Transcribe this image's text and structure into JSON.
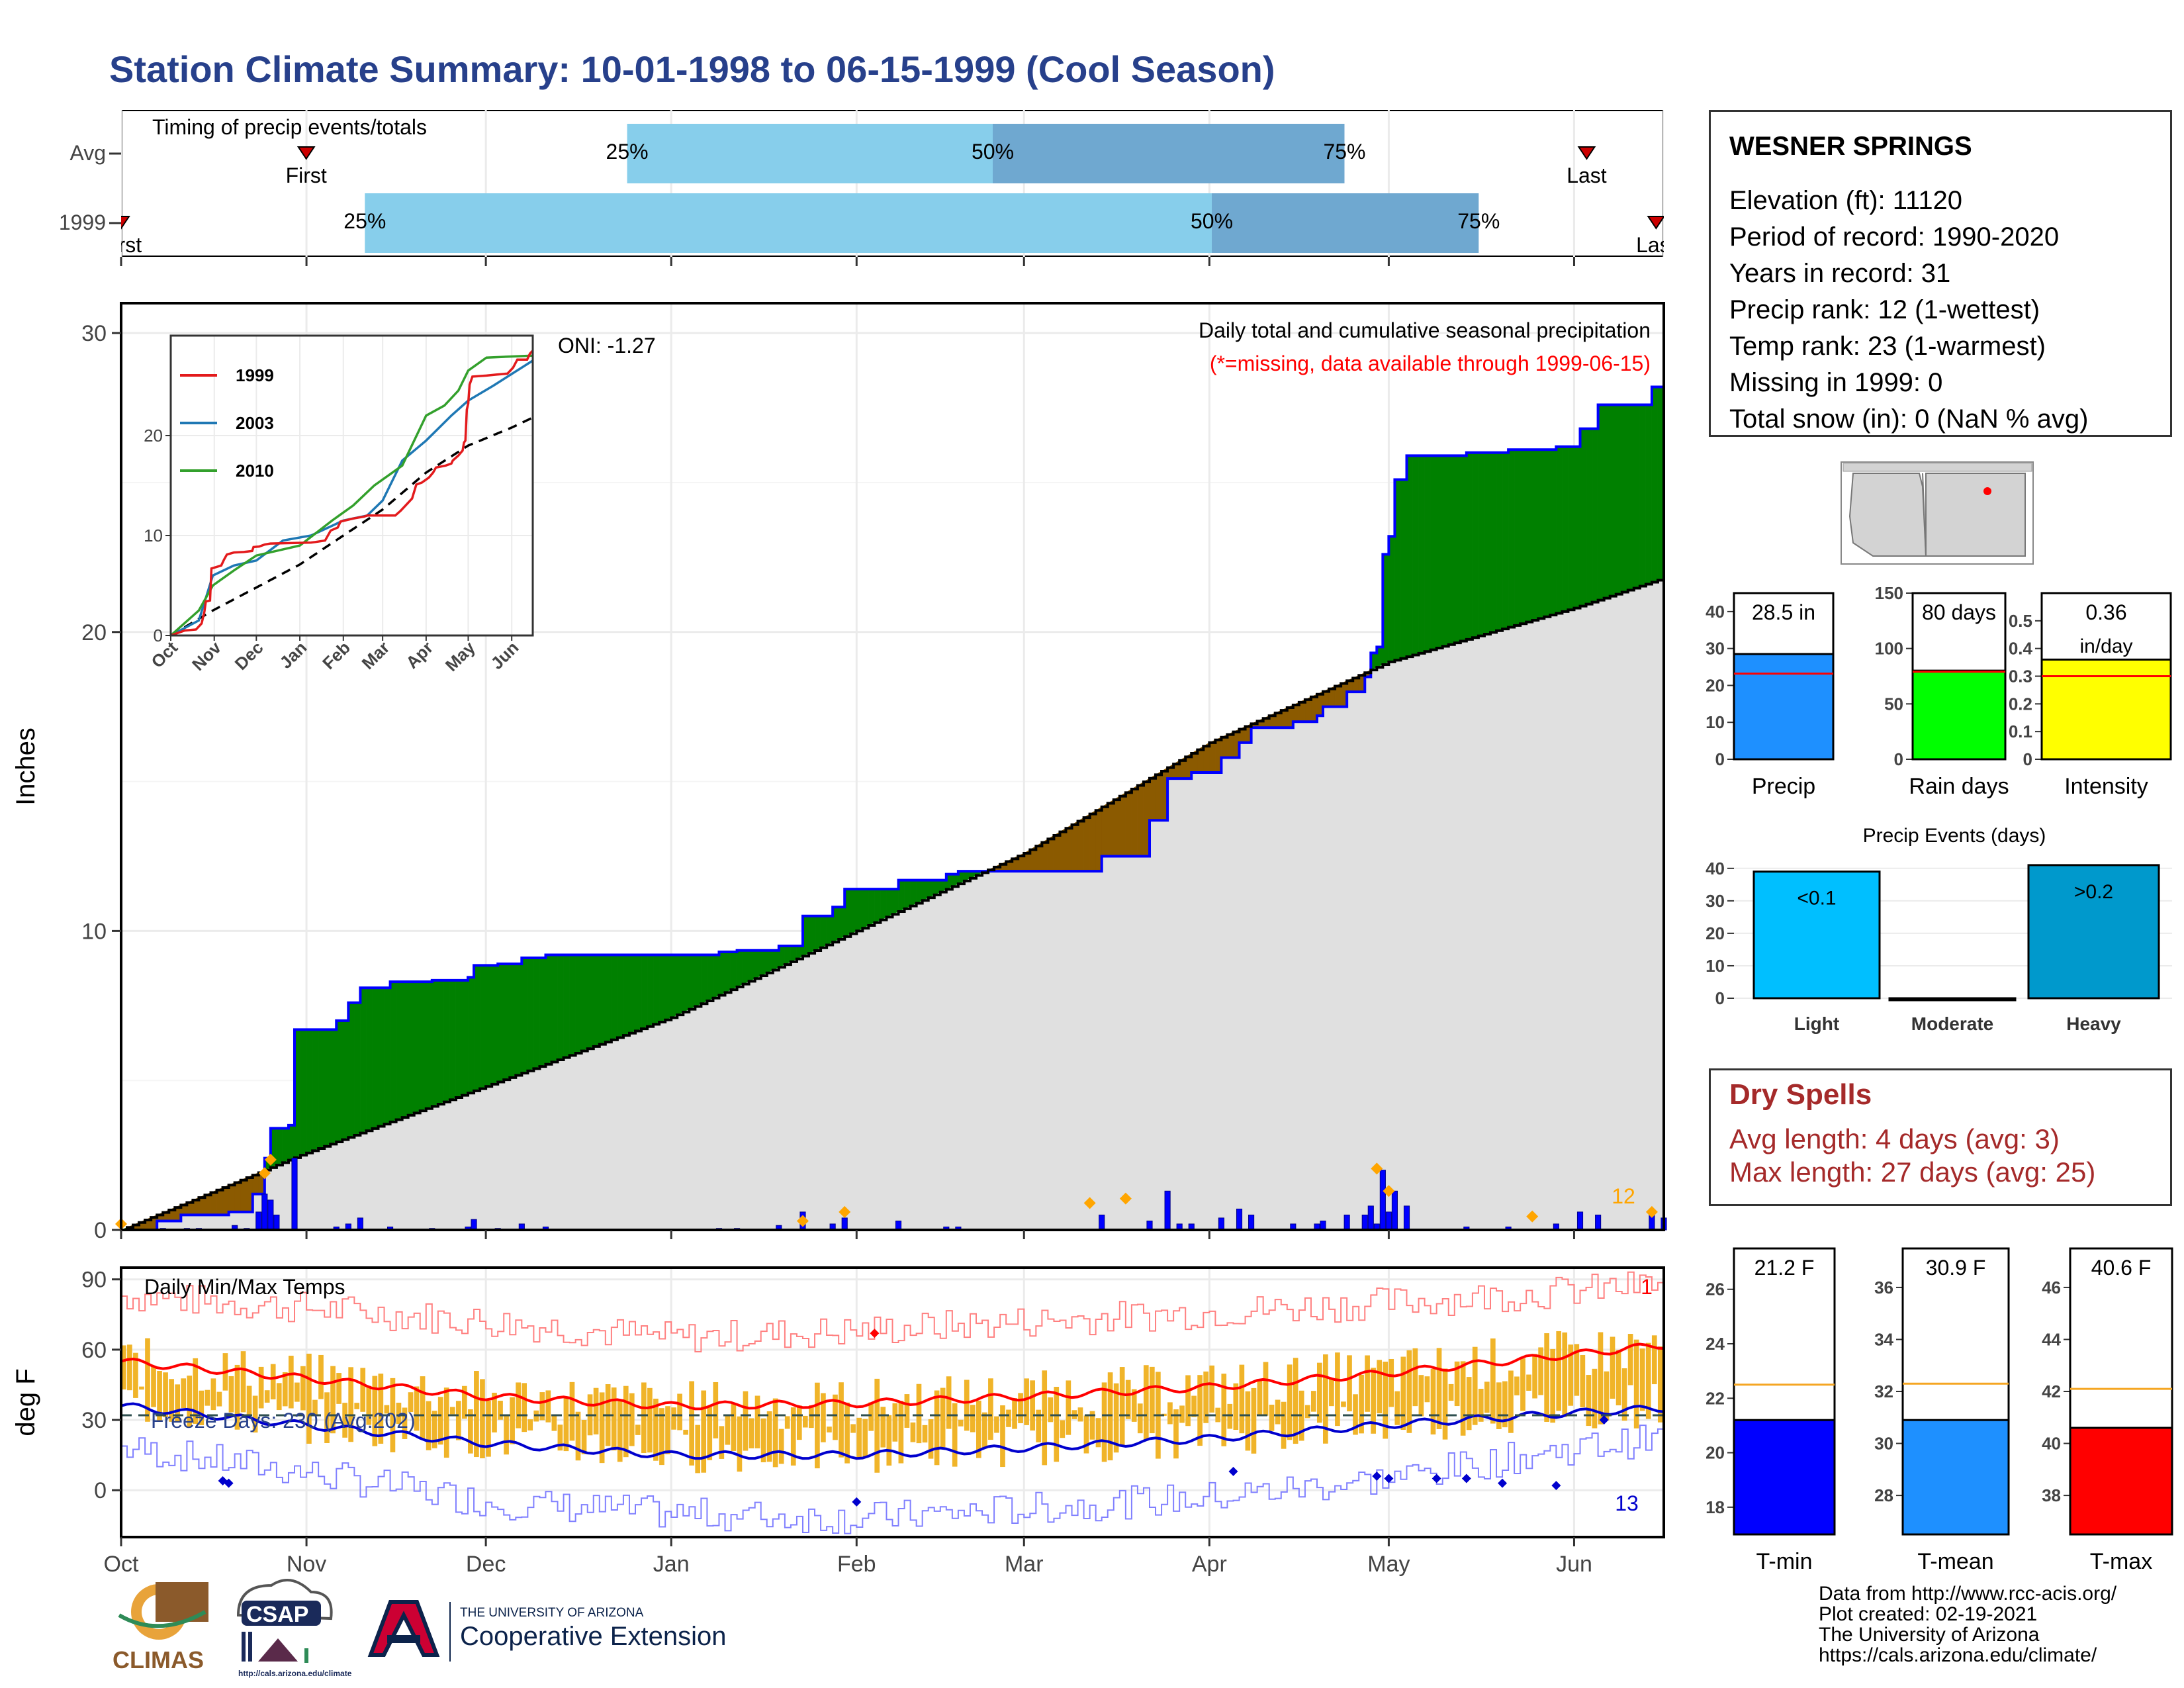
{
  "page_title": "Station Climate Summary: 10-01-1998 to 06-15-1999 (Cool Season)",
  "colors": {
    "title": "#27408b",
    "green": "#008000",
    "brown": "#8b5a00",
    "grey": "#e0e0e0",
    "blue": "#0000ff",
    "orange": "#f5a623",
    "red": "#ff0000",
    "lightblue": "#87ceeb",
    "midblue": "#6fa8d0"
  },
  "timing": {
    "title": "Timing of precip events/totals",
    "rows": [
      {
        "label": "Avg",
        "first_label": "First",
        "last_label": "Last",
        "first_x": 0.12,
        "last_x": 0.95,
        "p25_x": 0.328,
        "p50_x": 0.565,
        "p75_x": 0.793,
        "p25": "25%",
        "p50": "50%",
        "p75": "75%"
      },
      {
        "label": "1999",
        "first_label": "First",
        "last_label": "Last",
        "first_x": 0.0,
        "last_x": 0.995,
        "p25_x": 0.158,
        "p50_x": 0.707,
        "p75_x": 0.88,
        "p25": "25%",
        "p50": "50%",
        "p75": "75%"
      }
    ]
  },
  "chart_data": [
    {
      "type": "area",
      "id": "cumulative-precip",
      "title": "Daily total and cumulative seasonal precipitation",
      "subtitle": "(*=missing, data available through 1999-06-15)",
      "ylabel": "Inches",
      "ylim": [
        0,
        31
      ],
      "yticks": [
        0,
        10,
        20,
        30
      ],
      "oni": "ONI: -1.27",
      "extreme_count": "12",
      "x_months": [
        "Oct",
        "Nov",
        "Dec",
        "Jan",
        "Feb",
        "Mar",
        "Apr",
        "May",
        "Jun"
      ],
      "month_starts": [
        0,
        31,
        61,
        92,
        123,
        151,
        182,
        212,
        243
      ],
      "days": 258,
      "cum_1999": [
        [
          0,
          0
        ],
        [
          6,
          0.3
        ],
        [
          10,
          0.5
        ],
        [
          18,
          0.6
        ],
        [
          22,
          1.2
        ],
        [
          24,
          2.4
        ],
        [
          25,
          3.4
        ],
        [
          28,
          3.5
        ],
        [
          29,
          6.7
        ],
        [
          36,
          7.0
        ],
        [
          38,
          7.6
        ],
        [
          40,
          8.1
        ],
        [
          45,
          8.3
        ],
        [
          52,
          8.35
        ],
        [
          58,
          8.45
        ],
        [
          59,
          8.85
        ],
        [
          63,
          8.9
        ],
        [
          67,
          9.1
        ],
        [
          71,
          9.2
        ],
        [
          100,
          9.3
        ],
        [
          103,
          9.35
        ],
        [
          110,
          9.5
        ],
        [
          114,
          10.5
        ],
        [
          119,
          10.8
        ],
        [
          121,
          11.4
        ],
        [
          130,
          11.7
        ],
        [
          138,
          11.9
        ],
        [
          140,
          12.0
        ],
        [
          156,
          12.0
        ],
        [
          160,
          12.0
        ],
        [
          164,
          12.5
        ],
        [
          172,
          13.7
        ],
        [
          175,
          15.1
        ],
        [
          179,
          15.3
        ],
        [
          184,
          15.8
        ],
        [
          187,
          16.3
        ],
        [
          189,
          16.8
        ],
        [
          196,
          17.0
        ],
        [
          200,
          17.2
        ],
        [
          201,
          17.5
        ],
        [
          205,
          18.0
        ],
        [
          208,
          18.5
        ],
        [
          209,
          19.3
        ],
        [
          210,
          19.5
        ],
        [
          211,
          22.6
        ],
        [
          212,
          23.2
        ],
        [
          213,
          25.1
        ],
        [
          215,
          25.9
        ],
        [
          225,
          26.0
        ],
        [
          232,
          26.1
        ],
        [
          240,
          26.2
        ],
        [
          244,
          26.8
        ],
        [
          247,
          27.6
        ],
        [
          254,
          27.6
        ],
        [
          256,
          28.2
        ],
        [
          258,
          28.5
        ]
      ],
      "cum_avg": [
        [
          0,
          0
        ],
        [
          30,
          2.5
        ],
        [
          61,
          4.8
        ],
        [
          92,
          7.1
        ],
        [
          123,
          10.0
        ],
        [
          151,
          12.6
        ],
        [
          182,
          16.3
        ],
        [
          212,
          19.0
        ],
        [
          243,
          20.8
        ],
        [
          258,
          21.8
        ]
      ],
      "daily_bars": [
        [
          7,
          0.05
        ],
        [
          11,
          0.05
        ],
        [
          13,
          0.05
        ],
        [
          19,
          0.15
        ],
        [
          21,
          0.05
        ],
        [
          23,
          0.6
        ],
        [
          24,
          1.2
        ],
        [
          25,
          1.0
        ],
        [
          26,
          0.5
        ],
        [
          29,
          2.4
        ],
        [
          36,
          0.1
        ],
        [
          38,
          0.2
        ],
        [
          40,
          0.4
        ],
        [
          45,
          0.1
        ],
        [
          52,
          0.05
        ],
        [
          58,
          0.1
        ],
        [
          59,
          0.35
        ],
        [
          63,
          0.05
        ],
        [
          67,
          0.2
        ],
        [
          71,
          0.1
        ],
        [
          100,
          0.05
        ],
        [
          103,
          0.05
        ],
        [
          110,
          0.15
        ],
        [
          114,
          0.6
        ],
        [
          119,
          0.2
        ],
        [
          121,
          0.4
        ],
        [
          130,
          0.3
        ],
        [
          138,
          0.1
        ],
        [
          140,
          0.1
        ],
        [
          164,
          0.5
        ],
        [
          172,
          0.3
        ],
        [
          175,
          1.3
        ],
        [
          177,
          0.2
        ],
        [
          179,
          0.2
        ],
        [
          184,
          0.4
        ],
        [
          187,
          0.7
        ],
        [
          189,
          0.5
        ],
        [
          196,
          0.2
        ],
        [
          200,
          0.2
        ],
        [
          201,
          0.3
        ],
        [
          205,
          0.5
        ],
        [
          208,
          0.5
        ],
        [
          209,
          0.8
        ],
        [
          210,
          0.2
        ],
        [
          211,
          2.0
        ],
        [
          212,
          0.6
        ],
        [
          213,
          1.3
        ],
        [
          215,
          0.8
        ],
        [
          225,
          0.1
        ],
        [
          232,
          0.1
        ],
        [
          240,
          0.2
        ],
        [
          244,
          0.6
        ],
        [
          247,
          0.5
        ],
        [
          256,
          0.6
        ],
        [
          258,
          0.4
        ]
      ],
      "marked_days": [
        [
          0,
          0.2
        ],
        [
          24,
          1.9
        ],
        [
          25,
          2.35
        ],
        [
          114,
          0.3
        ],
        [
          121,
          0.6
        ],
        [
          162,
          0.9
        ],
        [
          168,
          1.05
        ],
        [
          210,
          2.05
        ],
        [
          212,
          1.3
        ],
        [
          236,
          0.45
        ],
        [
          256,
          0.6
        ]
      ]
    },
    {
      "type": "line",
      "id": "inset-cumulative",
      "series": [
        {
          "name": "1999",
          "color": "#e31a1c"
        },
        {
          "name": "2003",
          "color": "#1f78b4"
        },
        {
          "name": "2010",
          "color": "#33a02c"
        }
      ],
      "x_months": [
        "Oct",
        "Nov",
        "Dec",
        "Jan",
        "Feb",
        "Mar",
        "Apr",
        "May",
        "Jun"
      ],
      "ylim": [
        0,
        30
      ],
      "yticks": [
        0,
        10,
        20
      ],
      "s2003": [
        [
          0,
          0
        ],
        [
          20,
          1.5
        ],
        [
          30,
          6.0
        ],
        [
          45,
          7.0
        ],
        [
          61,
          7.5
        ],
        [
          80,
          9.5
        ],
        [
          100,
          10.0
        ],
        [
          123,
          11.5
        ],
        [
          140,
          12.0
        ],
        [
          151,
          13.5
        ],
        [
          165,
          17.5
        ],
        [
          182,
          19.5
        ],
        [
          200,
          22.0
        ],
        [
          212,
          23.5
        ],
        [
          230,
          25.0
        ],
        [
          258,
          27.5
        ]
      ],
      "s2010": [
        [
          0,
          0
        ],
        [
          20,
          2.5
        ],
        [
          30,
          5.0
        ],
        [
          45,
          6.5
        ],
        [
          61,
          8.0
        ],
        [
          92,
          9.0
        ],
        [
          115,
          11.5
        ],
        [
          130,
          13.0
        ],
        [
          145,
          15.0
        ],
        [
          165,
          17.0
        ],
        [
          182,
          22.0
        ],
        [
          195,
          23.0
        ],
        [
          205,
          24.5
        ],
        [
          212,
          26.5
        ],
        [
          225,
          27.8
        ],
        [
          258,
          28.0
        ]
      ]
    },
    {
      "type": "line",
      "id": "temps",
      "title": "Daily Min/Max Temps",
      "ylabel": "deg F",
      "ylim": [
        -20,
        95
      ],
      "yticks": [
        0,
        30,
        60,
        90
      ],
      "freeze_label": "Freeze Days: 230 (Avg:202)",
      "max_count": "1",
      "min_count": "13",
      "freeze_line": 32,
      "x_months": [
        "Oct",
        "Nov",
        "Dec",
        "Jan",
        "Feb",
        "Mar",
        "Apr",
        "May",
        "Jun"
      ],
      "avg_max": [
        [
          0,
          55
        ],
        [
          30,
          48
        ],
        [
          61,
          40
        ],
        [
          92,
          36
        ],
        [
          123,
          37
        ],
        [
          151,
          40
        ],
        [
          182,
          44
        ],
        [
          212,
          50
        ],
        [
          243,
          58
        ],
        [
          258,
          62
        ]
      ],
      "avg_min": [
        [
          0,
          36
        ],
        [
          30,
          28
        ],
        [
          61,
          20
        ],
        [
          92,
          15
        ],
        [
          123,
          15
        ],
        [
          151,
          18
        ],
        [
          182,
          22
        ],
        [
          212,
          28
        ],
        [
          243,
          33
        ],
        [
          258,
          35
        ]
      ],
      "rec_max": [
        [
          0,
          83
        ],
        [
          30,
          78
        ],
        [
          61,
          72
        ],
        [
          92,
          65
        ],
        [
          123,
          68
        ],
        [
          151,
          72
        ],
        [
          182,
          76
        ],
        [
          212,
          80
        ],
        [
          243,
          85
        ],
        [
          258,
          88
        ]
      ],
      "rec_min": [
        [
          0,
          18
        ],
        [
          30,
          8
        ],
        [
          61,
          -5
        ],
        [
          92,
          -10
        ],
        [
          123,
          -12
        ],
        [
          151,
          -8
        ],
        [
          182,
          -3
        ],
        [
          212,
          5
        ],
        [
          243,
          18
        ],
        [
          258,
          22
        ]
      ]
    },
    {
      "type": "bar",
      "id": "precip-total",
      "categories": [
        "Precip"
      ],
      "values": [
        28.5
      ],
      "avg": 23.2,
      "ylim": [
        0,
        45
      ],
      "yticks": [
        0,
        10,
        20,
        30,
        40
      ],
      "label": "28.5 in",
      "color": "#1e90ff"
    },
    {
      "type": "bar",
      "id": "rain-days",
      "categories": [
        "Rain days"
      ],
      "values": [
        80
      ],
      "avg": 79,
      "ylim": [
        0,
        150
      ],
      "yticks": [
        0,
        50,
        100,
        150
      ],
      "label": "80 days",
      "color": "#00ff00"
    },
    {
      "type": "bar",
      "id": "intensity",
      "categories": [
        "Intensity"
      ],
      "values": [
        0.36
      ],
      "avg": 0.3,
      "ylim": [
        0,
        0.6
      ],
      "yticks": [
        0.0,
        0.1,
        0.2,
        0.3,
        0.4,
        0.5
      ],
      "label": "0.36",
      "label2": "in/day",
      "color": "#ffff00"
    },
    {
      "type": "bar",
      "id": "precip-events",
      "title": "Precip Events (days)",
      "categories": [
        "Light",
        "Moderate",
        "Heavy"
      ],
      "values": [
        39,
        0,
        41
      ],
      "bar_labels": [
        "<0.1",
        "",
        ">0.2"
      ],
      "colors": [
        "#00bfff",
        "#000000",
        "#0099cc"
      ],
      "ylim": [
        0,
        42
      ],
      "yticks": [
        0,
        10,
        20,
        30,
        40
      ]
    },
    {
      "type": "bar",
      "id": "t-min",
      "categories": [
        "T-min"
      ],
      "values": [
        21.2
      ],
      "avg": 22.5,
      "ylim": [
        17,
        27.5
      ],
      "yticks": [
        18,
        20,
        22,
        24,
        26
      ],
      "label": "21.2 F",
      "color": "#0000ff"
    },
    {
      "type": "bar",
      "id": "t-mean",
      "categories": [
        "T-mean"
      ],
      "values": [
        30.9
      ],
      "avg": 32.3,
      "ylim": [
        26.5,
        37.5
      ],
      "yticks": [
        28,
        30,
        32,
        34,
        36
      ],
      "label": "30.9 F",
      "color": "#1e90ff"
    },
    {
      "type": "bar",
      "id": "t-max",
      "categories": [
        "T-max"
      ],
      "values": [
        40.6
      ],
      "avg": 42.1,
      "ylim": [
        36.5,
        47.5
      ],
      "yticks": [
        38,
        40,
        42,
        44,
        46
      ],
      "label": "40.6 F",
      "color": "#ff0000"
    }
  ],
  "station": {
    "name": "WESNER SPRINGS",
    "elevation": "Elevation (ft): 11120",
    "period": "Period of record: 1990-2020",
    "years": "Years in record: 31",
    "precip_rank": "Precip rank: 12 (1-wettest)",
    "temp_rank": "Temp rank: 23 (1-warmest)",
    "missing": "Missing in 1999: 0",
    "snow": "Total snow (in): 0 (NaN % avg)"
  },
  "dry_spells": {
    "title": "Dry Spells",
    "avg": "Avg length: 4 days (avg: 3)",
    "max": "Max length: 27 days (avg: 25)"
  },
  "logos": {
    "climas": "CLIMAS",
    "csap": "CSAP",
    "csap_url": "http://cals.arizona.edu/climate",
    "ua_small": "THE UNIVERSITY OF ARIZONA",
    "ua_big": "Cooperative Extension"
  },
  "credits": {
    "l1": "Data from http://www.rcc-acis.org/",
    "l2": "Plot created: 02-19-2021",
    "l3": "The University of Arizona",
    "l4": "https://cals.arizona.edu/climate/"
  }
}
